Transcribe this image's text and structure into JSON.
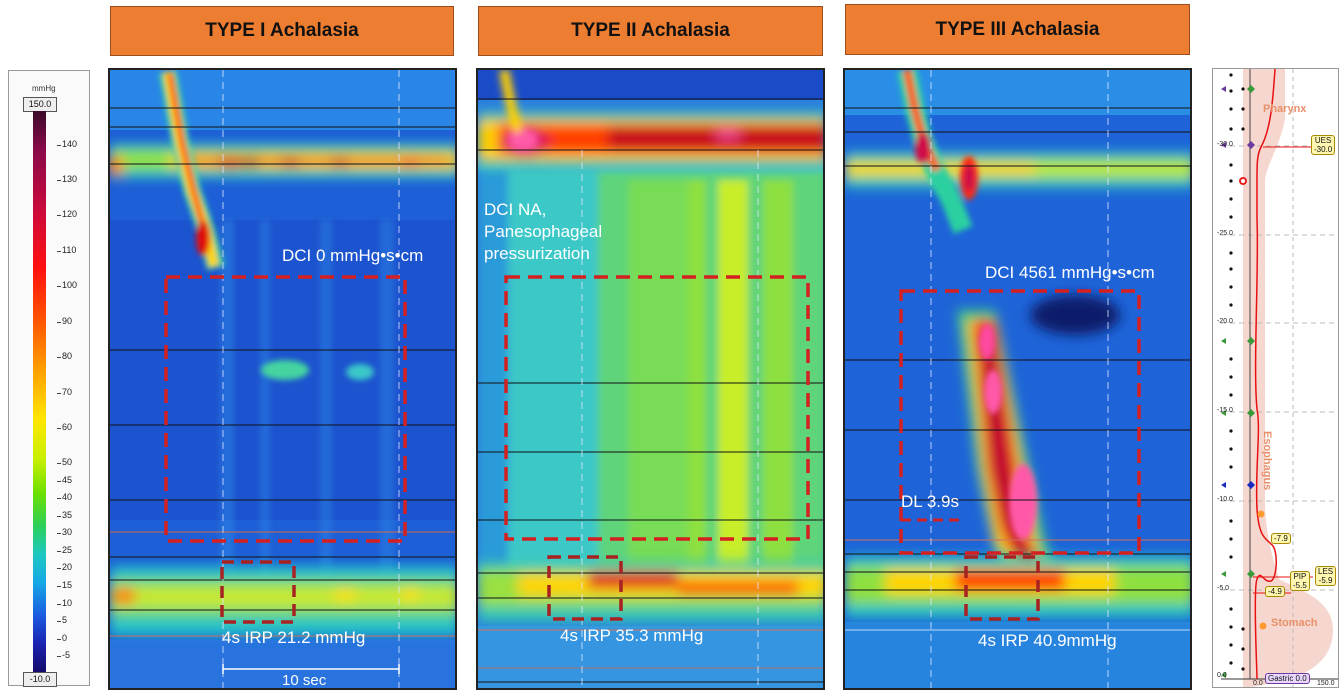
{
  "panels": [
    {
      "title": "TYPE I Achalasia",
      "dci_text": "DCI 0 mmHg•s•cm",
      "irp_text": "4s IRP 21.2 mmHg",
      "scale_text": "10 sec"
    },
    {
      "title": "TYPE II Achalasia",
      "dci_line1": "DCI NA,",
      "dci_line2": "Panesophageal",
      "dci_line3": "pressurization",
      "irp_text": "4s IRP 35.3 mmHg"
    },
    {
      "title": "TYPE III Achalasia",
      "dci_text": "DCI 4561 mmHg•s•cm",
      "dl_text": "DL 3.9s",
      "irp_text": "4s IRP 40.9mmHg"
    }
  ],
  "colorbar": {
    "unit": "mmHg",
    "max": "150.0",
    "min": "-10.0",
    "ticks": [
      "140",
      "130",
      "120",
      "110",
      "100",
      "90",
      "80",
      "70",
      "60",
      "50",
      "45",
      "40",
      "35",
      "30",
      "25",
      "20",
      "15",
      "10",
      "5",
      "0",
      "-5"
    ]
  },
  "side_panel": {
    "labels": {
      "pharynx": "Pharynx",
      "esophagus": "Esophagus",
      "stomach": "Stomach"
    },
    "axis": [
      "-30.0",
      "-25.0",
      "-20.0",
      "-15.0",
      "-10.0",
      "-5.0",
      "0.0"
    ],
    "tags": {
      "ues": "UES\n-30.0",
      "les": "LES\n-5.9",
      "pip": "PIP\n-5.5",
      "t79": "-7.9",
      "t49": "-4.9",
      "gastric": "Gastric 0.0"
    },
    "scale_left": "0.0",
    "scale_right": "150.0"
  },
  "colors": {
    "banner": "#ED7D31",
    "dashed_box": "#d42020",
    "pressure_line": "#e81010"
  }
}
